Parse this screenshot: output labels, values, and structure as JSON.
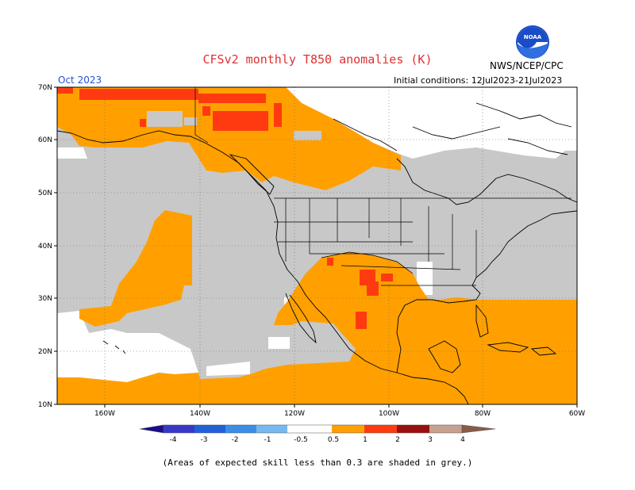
{
  "header": {
    "title": "CFSv2 monthly T850 anomalies (K)",
    "issuer": "NWS/NCEP/CPC",
    "month": "Oct 2023",
    "initial_conditions": "Initial conditions: 12Jul2023-21Jul2023",
    "logo_text": "NOAA"
  },
  "axes": {
    "lat_ticks": [
      "70N",
      "60N",
      "50N",
      "40N",
      "30N",
      "20N",
      "10N"
    ],
    "lon_ticks": [
      "160W",
      "140W",
      "120W",
      "100W",
      "80W",
      "60W"
    ]
  },
  "legend": {
    "labels": [
      "-4",
      "-3",
      "-2",
      "-1",
      "-0.5",
      "0.5",
      "1",
      "2",
      "3",
      "4"
    ],
    "colors": [
      "#1a0c8a",
      "#3838c8",
      "#2060d8",
      "#3a8ee8",
      "#78b8f0",
      "#ffffff",
      "#ffa000",
      "#ff3a10",
      "#c81010",
      "#8a0a0a",
      "#c8a090",
      "#8a5a48"
    ]
  },
  "note": "(Areas of expected skill less than 0.3 are shaded in grey.)",
  "colors": {
    "grey_low_skill": "#c8c8c8",
    "anomaly_0_5_to_1": "#ffa000",
    "anomaly_1_to_2": "#ff3a10",
    "land_outline": "#000000",
    "graticule": "#555555"
  }
}
